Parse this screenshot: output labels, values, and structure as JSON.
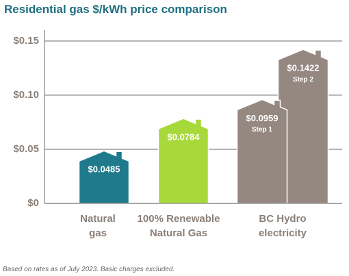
{
  "chart_data": {
    "type": "bar",
    "title": "Residential gas $/kWh price comparison",
    "groups": [
      {
        "label": "Natural gas",
        "color": "#1f7a8c",
        "values": [
          0.0485
        ],
        "value_labels": [
          "$0.0485"
        ]
      },
      {
        "label": "100% Renewable Natural Gas",
        "color": "#a8d93b",
        "values": [
          0.0784
        ],
        "value_labels": [
          "$0.0784"
        ]
      },
      {
        "label": "BC Hydro electricity",
        "color": "#948880",
        "values": [
          0.0959,
          0.1422
        ],
        "value_labels": [
          "$0.0959",
          "$0.1422"
        ],
        "sublabels": [
          "Step 1",
          "Step 2"
        ]
      }
    ],
    "ylim": [
      0,
      0.16
    ],
    "yticks": [
      {
        "value": 0,
        "label": "$0"
      },
      {
        "value": 0.05,
        "label": "$0.05"
      },
      {
        "value": 0.1,
        "label": "$0.10"
      },
      {
        "value": 0.15,
        "label": "$0.15"
      }
    ],
    "grid": true,
    "footnote": "Based on rates as of July 2023. Basic charges excluded."
  }
}
